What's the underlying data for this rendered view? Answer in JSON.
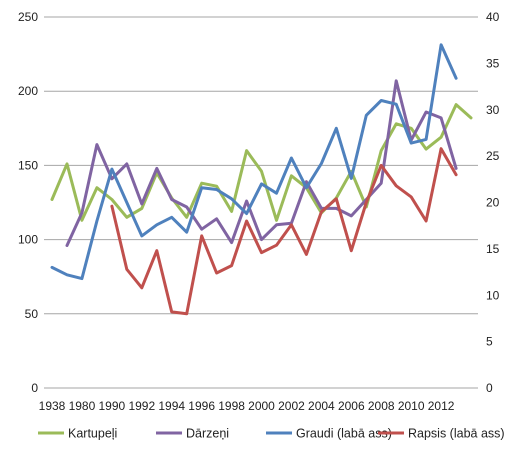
{
  "chart_data": {
    "type": "line",
    "title": "",
    "x": [
      "1938",
      "1980",
      "1990",
      "1992",
      "1994",
      "1996",
      "1998",
      "2000",
      "2002",
      "2004",
      "2006",
      "2008",
      "2010",
      "2012"
    ],
    "x_ticks": [
      "1938",
      "1980",
      "1990",
      "1992",
      "1994",
      "1996",
      "1998",
      "2000",
      "2002",
      "2004",
      "2006",
      "2008",
      "2010",
      "2012"
    ],
    "left_axis": {
      "min": 0,
      "max": 250,
      "ticks": [
        0,
        50,
        100,
        150,
        200,
        250
      ]
    },
    "right_axis": {
      "min": 0,
      "max": 40,
      "ticks": [
        0,
        5,
        10,
        15,
        20,
        25,
        30,
        35,
        40
      ]
    },
    "grid": true,
    "legend_position": "bottom",
    "series": [
      {
        "name": "Kartupeļi",
        "axis": "left",
        "color": "#9bbb59",
        "points": [
          [
            0,
            127
          ],
          [
            1,
            151
          ],
          [
            2,
            113
          ],
          [
            3,
            135
          ],
          [
            4,
            127
          ],
          [
            5,
            115
          ],
          [
            6,
            121
          ],
          [
            7,
            145
          ],
          [
            8,
            128
          ],
          [
            9,
            115
          ],
          [
            10,
            138
          ],
          [
            11,
            136
          ],
          [
            12,
            119
          ],
          [
            13,
            160
          ],
          [
            14,
            146
          ],
          [
            15,
            113
          ],
          [
            16,
            143
          ],
          [
            17,
            135
          ],
          [
            18,
            118
          ],
          [
            19,
            128
          ],
          [
            20,
            146
          ],
          [
            21,
            122
          ],
          [
            22,
            160
          ],
          [
            23,
            178
          ],
          [
            24,
            175
          ],
          [
            25,
            161
          ],
          [
            26,
            169
          ],
          [
            27,
            191
          ],
          [
            28,
            182
          ]
        ]
      },
      {
        "name": "Dārzeņi",
        "axis": "left",
        "color": "#8064a2",
        "points": [
          [
            1,
            96
          ],
          [
            2,
            118
          ],
          [
            3,
            164
          ],
          [
            4,
            141
          ],
          [
            5,
            151
          ],
          [
            6,
            124
          ],
          [
            7,
            148
          ],
          [
            8,
            127
          ],
          [
            9,
            122
          ],
          [
            10,
            107
          ],
          [
            11,
            114
          ],
          [
            12,
            98
          ],
          [
            13,
            126
          ],
          [
            14,
            100
          ],
          [
            15,
            110
          ],
          [
            16,
            111
          ],
          [
            17,
            139
          ],
          [
            18,
            121
          ],
          [
            19,
            121
          ],
          [
            20,
            116
          ],
          [
            21,
            127
          ],
          [
            22,
            138
          ],
          [
            23,
            207
          ],
          [
            24,
            167
          ],
          [
            25,
            186
          ],
          [
            26,
            182
          ],
          [
            27,
            148
          ]
        ]
      },
      {
        "name": "Graudi (labā ass)",
        "axis": "right",
        "color": "#4f81bd",
        "points": [
          [
            0,
            13.0
          ],
          [
            1,
            12.2
          ],
          [
            2,
            11.8
          ],
          [
            3,
            18.0
          ],
          [
            4,
            23.6
          ],
          [
            5,
            20.0
          ],
          [
            6,
            16.4
          ],
          [
            7,
            17.6
          ],
          [
            8,
            18.4
          ],
          [
            9,
            16.8
          ],
          [
            10,
            21.6
          ],
          [
            11,
            21.4
          ],
          [
            12,
            20.4
          ],
          [
            13,
            18.8
          ],
          [
            14,
            22.0
          ],
          [
            15,
            21.0
          ],
          [
            16,
            24.8
          ],
          [
            17,
            21.6
          ],
          [
            18,
            24.2
          ],
          [
            19,
            28.0
          ],
          [
            20,
            22.6
          ],
          [
            21,
            29.4
          ],
          [
            22,
            31.0
          ],
          [
            23,
            30.6
          ],
          [
            24,
            26.4
          ],
          [
            25,
            26.8
          ],
          [
            26,
            37.0
          ],
          [
            27,
            33.4
          ]
        ]
      },
      {
        "name": "Rapsis (labā ass)",
        "axis": "right",
        "color": "#c0504d",
        "points": [
          [
            4,
            19.6
          ],
          [
            5,
            12.8
          ],
          [
            6,
            10.8
          ],
          [
            7,
            14.8
          ],
          [
            8,
            8.2
          ],
          [
            9,
            8.0
          ],
          [
            10,
            16.4
          ],
          [
            11,
            12.4
          ],
          [
            12,
            13.2
          ],
          [
            13,
            18.0
          ],
          [
            14,
            14.6
          ],
          [
            15,
            15.4
          ],
          [
            16,
            17.6
          ],
          [
            17,
            14.4
          ],
          [
            18,
            19.0
          ],
          [
            19,
            20.4
          ],
          [
            20,
            14.8
          ],
          [
            21,
            20.0
          ],
          [
            22,
            24.0
          ],
          [
            23,
            21.8
          ],
          [
            24,
            20.6
          ],
          [
            25,
            18.0
          ],
          [
            26,
            25.8
          ],
          [
            27,
            23.0
          ]
        ]
      }
    ]
  }
}
